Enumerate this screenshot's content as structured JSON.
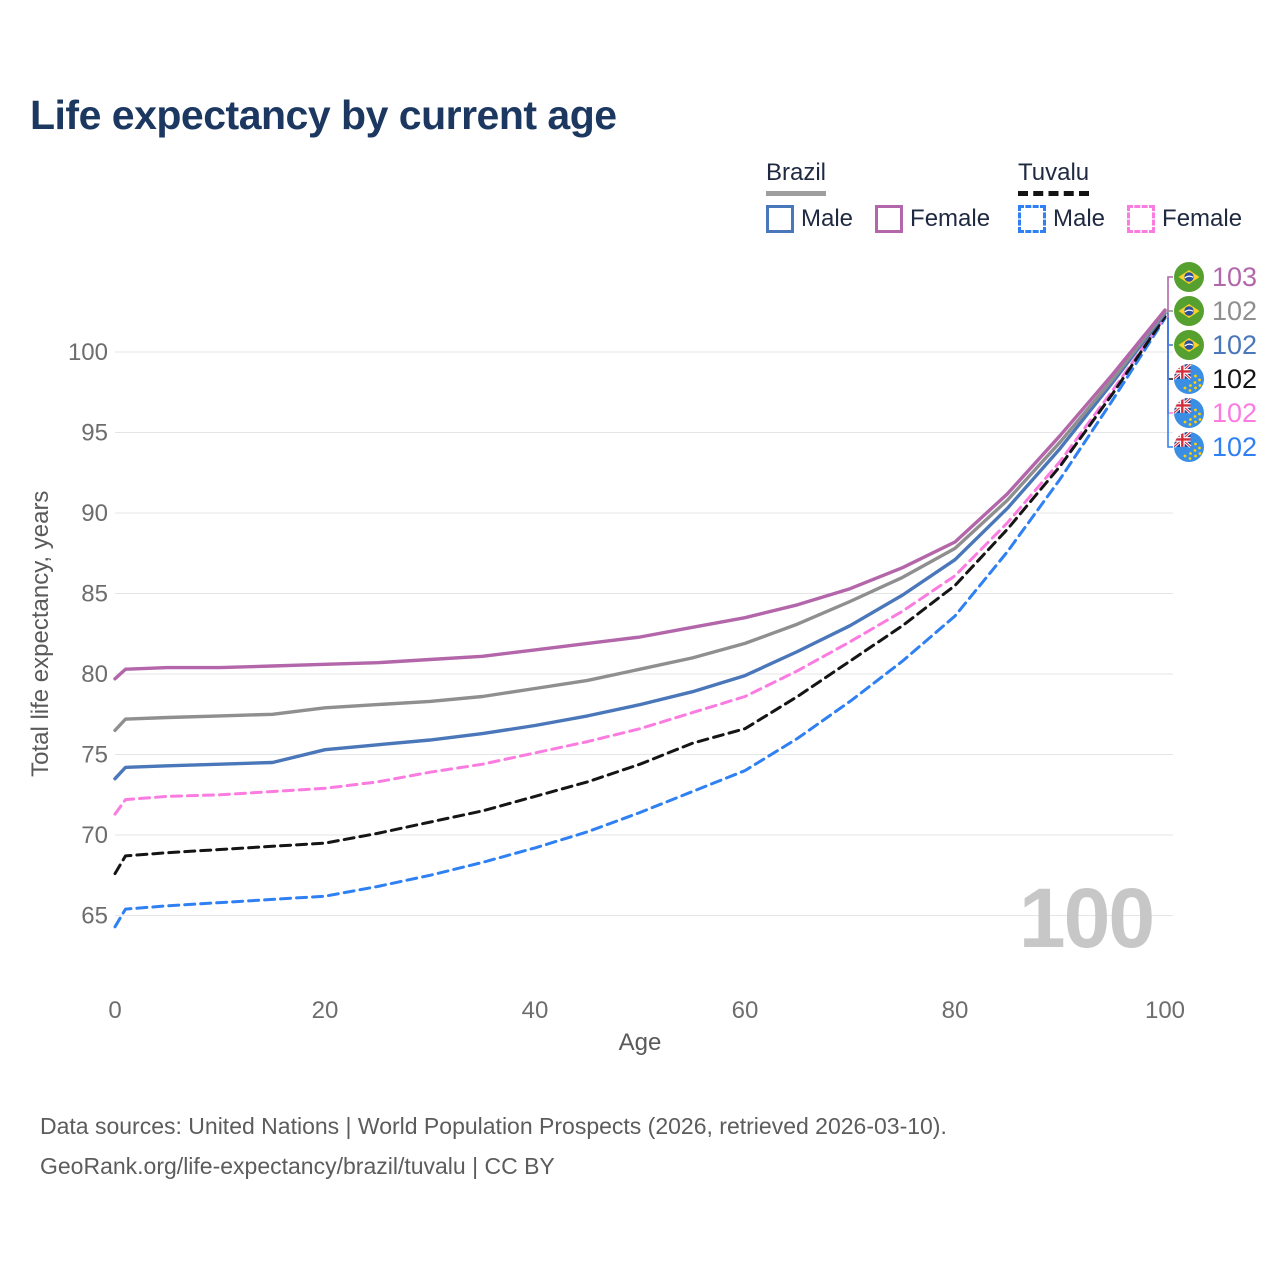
{
  "header": {
    "title": "Life expectancy by current age"
  },
  "legend": {
    "groups": [
      {
        "name": "Brazil",
        "underline": "solid",
        "underline_color": "#9e9e9e",
        "items": [
          {
            "label": "Male",
            "color": "#4a77b9",
            "dashed": false
          },
          {
            "label": "Female",
            "color": "#b366a9",
            "dashed": false
          }
        ]
      },
      {
        "name": "Tuvalu",
        "underline": "dashed",
        "underline_color": "#141414",
        "items": [
          {
            "label": "Male",
            "color": "#2f80f2",
            "dashed": true
          },
          {
            "label": "Female",
            "color": "#fb7ce1",
            "dashed": true
          }
        ]
      }
    ]
  },
  "chart_data": {
    "type": "line",
    "title": "Life expectancy by current age",
    "xlabel": "Age",
    "ylabel": "Total life expectancy, years",
    "x_ticks": [
      0,
      20,
      40,
      60,
      80,
      100
    ],
    "y_ticks": [
      65,
      70,
      75,
      80,
      85,
      90,
      95,
      100
    ],
    "xlim": [
      0,
      100
    ],
    "ylim": [
      64,
      103
    ],
    "grid": "horizontal-only",
    "legend_position": "top-right",
    "watermark": "100",
    "x": [
      0,
      1,
      5,
      10,
      15,
      20,
      25,
      30,
      35,
      40,
      45,
      50,
      55,
      60,
      65,
      70,
      75,
      80,
      85,
      90,
      95,
      100
    ],
    "series": [
      {
        "name": "Brazil Female",
        "country": "Brazil",
        "sex": "Female",
        "color": "#b366a9",
        "dashed": false,
        "flag": "brazil",
        "end_label": "103",
        "row": 0,
        "values": [
          79.7,
          80.3,
          80.4,
          80.4,
          80.5,
          80.6,
          80.7,
          80.9,
          81.1,
          81.5,
          81.9,
          82.3,
          82.9,
          83.5,
          84.3,
          85.3,
          86.6,
          88.2,
          91.2,
          94.8,
          98.6,
          102.6
        ]
      },
      {
        "name": "Brazil Both sexes",
        "country": "Brazil",
        "sex": "Both",
        "color": "#8f8f8f",
        "dashed": false,
        "flag": "brazil",
        "end_label": "102",
        "row": 1,
        "values": [
          76.5,
          77.2,
          77.3,
          77.4,
          77.5,
          77.9,
          78.1,
          78.3,
          78.6,
          79.1,
          79.6,
          80.3,
          81.0,
          81.9,
          83.1,
          84.5,
          86.0,
          87.8,
          90.8,
          94.4,
          98.3,
          102.5
        ]
      },
      {
        "name": "Brazil Male",
        "country": "Brazil",
        "sex": "Male",
        "color": "#4a77b9",
        "dashed": false,
        "flag": "brazil",
        "end_label": "102",
        "row": 2,
        "values": [
          73.5,
          74.2,
          74.3,
          74.4,
          74.5,
          75.3,
          75.6,
          75.9,
          76.3,
          76.8,
          77.4,
          78.1,
          78.9,
          79.9,
          81.4,
          83.0,
          84.9,
          87.1,
          90.3,
          94.0,
          98.1,
          102.4
        ]
      },
      {
        "name": "Tuvalu Both sexes",
        "country": "Tuvalu",
        "sex": "Both",
        "color": "#151515",
        "dashed": true,
        "flag": "tuvalu",
        "end_label": "102",
        "row": 3,
        "values": [
          67.6,
          68.7,
          68.9,
          69.1,
          69.3,
          69.5,
          70.1,
          70.8,
          71.5,
          72.4,
          73.3,
          74.4,
          75.7,
          76.6,
          78.6,
          80.8,
          83.0,
          85.5,
          89.0,
          92.9,
          97.4,
          102.2
        ]
      },
      {
        "name": "Tuvalu Female",
        "country": "Tuvalu",
        "sex": "Female",
        "color": "#fb7ce1",
        "dashed": true,
        "flag": "tuvalu",
        "end_label": "102",
        "row": 4,
        "values": [
          71.3,
          72.2,
          72.4,
          72.5,
          72.7,
          72.9,
          73.3,
          73.9,
          74.4,
          75.1,
          75.8,
          76.6,
          77.6,
          78.6,
          80.2,
          82.0,
          83.9,
          86.1,
          89.4,
          93.2,
          97.6,
          102.2
        ]
      },
      {
        "name": "Tuvalu Male",
        "country": "Tuvalu",
        "sex": "Male",
        "color": "#2f80f2",
        "dashed": true,
        "flag": "tuvalu",
        "end_label": "102",
        "row": 5,
        "values": [
          64.3,
          65.4,
          65.6,
          65.8,
          66.0,
          66.2,
          66.8,
          67.5,
          68.3,
          69.2,
          70.2,
          71.4,
          72.7,
          74.0,
          76.0,
          78.3,
          80.8,
          83.6,
          87.6,
          92.1,
          97.0,
          102.1
        ]
      }
    ]
  },
  "colors": {
    "title_text": "#1c3860",
    "legend_text": "#1f2940",
    "tick_text": "#6d6d6d",
    "axis_title_text": "#5a5a5a",
    "gridline": "#e5e5e5",
    "watermark": "#c7c7c7",
    "footer_text": "#5c5c5c"
  },
  "footer": {
    "line1": "Data sources: United Nations | World Population Prospects (2026, retrieved 2026-03-10).",
    "line2": "GeoRank.org/life-expectancy/brazil/tuvalu | CC BY"
  }
}
